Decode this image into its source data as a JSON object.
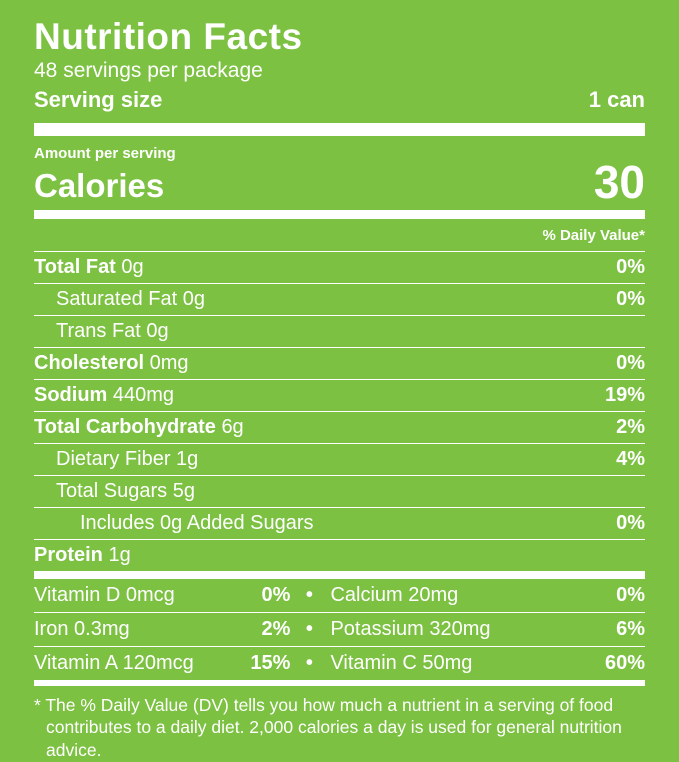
{
  "colors": {
    "background": "#7cc142",
    "text": "#ffffff"
  },
  "label": {
    "title": "Nutrition Facts",
    "servings_per_package": "48 servings per package",
    "serving_size": {
      "label": "Serving size",
      "value": "1 can"
    },
    "amount_per_serving": "Amount per serving",
    "calories": {
      "label": "Calories",
      "value": "30"
    },
    "daily_value_header": "% Daily Value*",
    "rows": [
      {
        "name": "Total Fat",
        "amount": "0g",
        "dv": "0%"
      },
      {
        "name": "Saturated Fat",
        "amount": "0g",
        "dv": "0%"
      },
      {
        "name": "Trans Fat",
        "amount": "0g",
        "dv": ""
      },
      {
        "name": "Cholesterol",
        "amount": "0mg",
        "dv": "0%"
      },
      {
        "name": "Sodium",
        "amount": "440mg",
        "dv": "19%"
      },
      {
        "name": "Total Carbohydrate",
        "amount": "6g",
        "dv": "2%"
      },
      {
        "name": "Dietary Fiber",
        "amount": "1g",
        "dv": "4%"
      },
      {
        "name": "Total Sugars",
        "amount": "5g",
        "dv": ""
      },
      {
        "name": "Includes 0g Added Sugars",
        "amount": "",
        "dv": "0%"
      },
      {
        "name": "Protein",
        "amount": "1g",
        "dv": ""
      }
    ],
    "micronutrients": [
      {
        "left": {
          "name": "Vitamin D 0mcg",
          "dv": "0%"
        },
        "separator": "•",
        "right": {
          "name": "Calcium 20mg",
          "dv": "0%"
        }
      },
      {
        "left": {
          "name": "Iron 0.3mg",
          "dv": "2%"
        },
        "separator": "•",
        "right": {
          "name": "Potassium 320mg",
          "dv": "6%"
        }
      },
      {
        "left": {
          "name": "Vitamin A 120mcg",
          "dv": "15%"
        },
        "separator": "•",
        "right": {
          "name": "Vitamin C 50mg",
          "dv": "60%"
        }
      }
    ],
    "footnote": "* The % Daily Value (DV) tells you how much a nutrient in a serving of food contributes to a daily diet. 2,000 calories a day is used for general nutrition advice."
  }
}
